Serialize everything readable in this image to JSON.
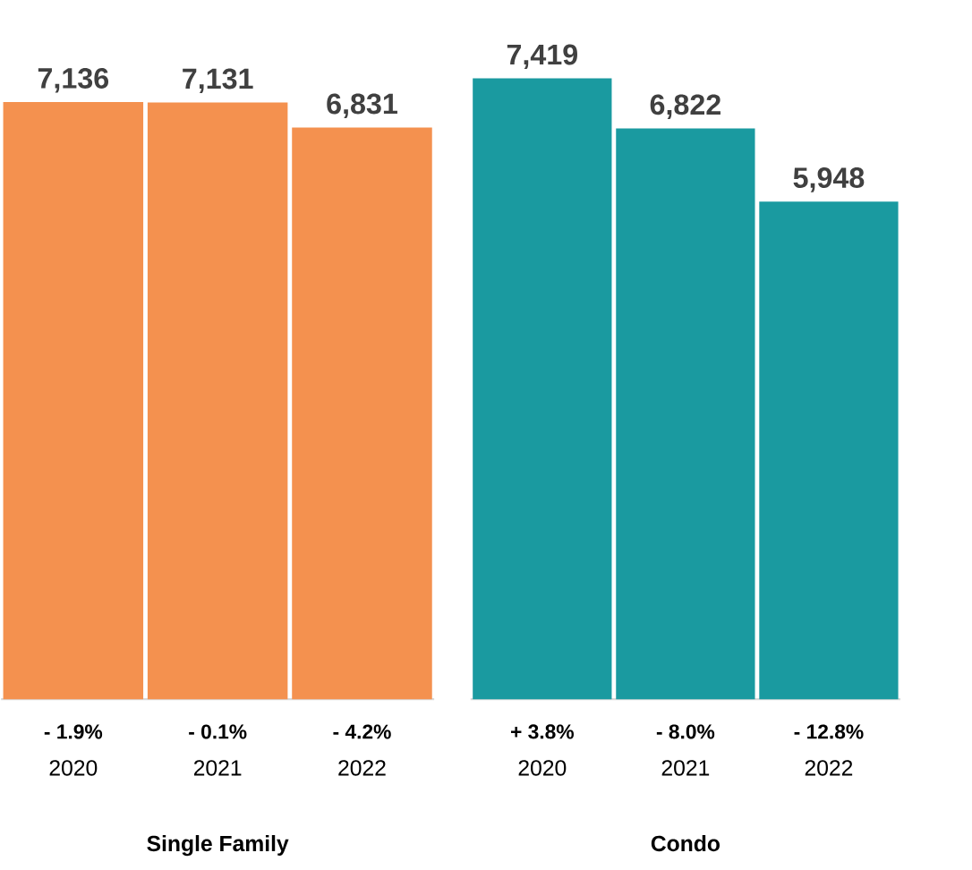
{
  "chart_data": [
    {
      "type": "bar",
      "xlabel": "Single Family",
      "categories": [
        "2020",
        "2021",
        "2022"
      ],
      "values": [
        7136,
        7131,
        6831
      ],
      "value_labels": [
        "7,136",
        "7,131",
        "6,831"
      ],
      "color": "#f4914f",
      "annotations": [
        "- 1.9%",
        "- 0.1%",
        "- 4.2%"
      ]
    },
    {
      "type": "bar",
      "xlabel": "Condo",
      "categories": [
        "2020",
        "2021",
        "2022"
      ],
      "values": [
        7419,
        6822,
        5948
      ],
      "value_labels": [
        "7,419",
        "6,822",
        "5,948"
      ],
      "color": "#1a9aa0",
      "annotations": [
        "+ 3.8%",
        "- 8.0%",
        "- 12.8%"
      ]
    }
  ]
}
